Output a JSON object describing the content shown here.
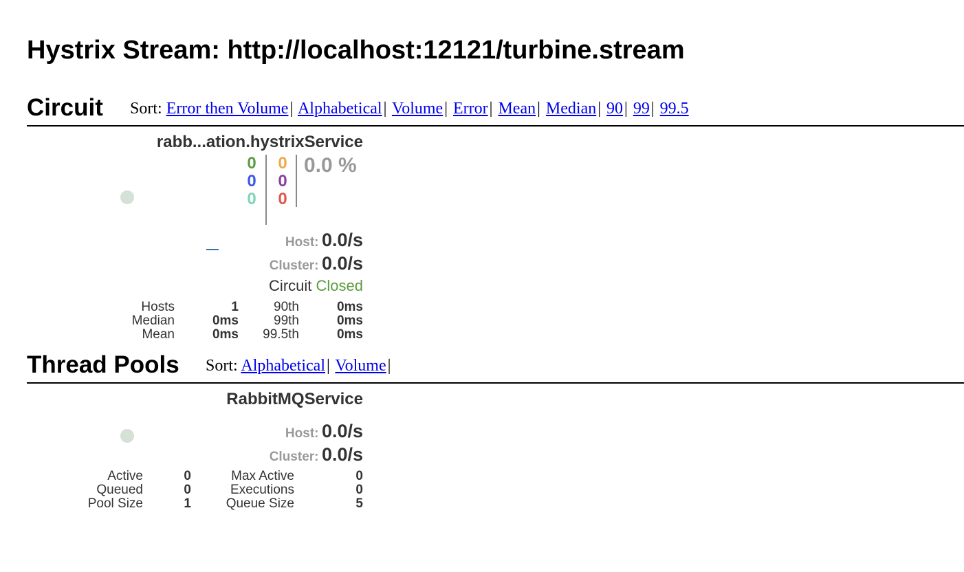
{
  "page": {
    "title": "Hystrix Stream: http://localhost:12121/turbine.stream"
  },
  "circuit": {
    "heading": "Circuit",
    "sort_label": "Sort:",
    "sort_options": [
      "Error then Volume",
      "Alphabetical",
      "Volume",
      "Error",
      "Mean",
      "Median",
      "90",
      "99",
      "99.5"
    ],
    "card": {
      "name": "rabb...ation.hystrixService",
      "counts": {
        "success": "0",
        "short_circuited": "0",
        "bad_request": "0",
        "timeout": "0",
        "rejected": "0",
        "failure": "0"
      },
      "error_percentage": "0.0 %",
      "host_label": "Host:",
      "host_rate": "0.0/s",
      "cluster_label": "Cluster:",
      "cluster_rate": "0.0/s",
      "circuit_label": "Circuit",
      "circuit_state": "Closed",
      "stats": {
        "hosts_label": "Hosts",
        "hosts": "1",
        "median_label": "Median",
        "median": "0ms",
        "mean_label": "Mean",
        "mean": "0ms",
        "p90_label": "90th",
        "p90": "0ms",
        "p99_label": "99th",
        "p99": "0ms",
        "p995_label": "99.5th",
        "p995": "0ms"
      }
    }
  },
  "thread_pools": {
    "heading": "Thread Pools",
    "sort_label": "Sort:",
    "sort_options": [
      "Alphabetical",
      "Volume"
    ],
    "card": {
      "name": "RabbitMQService",
      "host_label": "Host:",
      "host_rate": "0.0/s",
      "cluster_label": "Cluster:",
      "cluster_rate": "0.0/s",
      "stats": {
        "active_label": "Active",
        "active": "0",
        "queued_label": "Queued",
        "queued": "0",
        "pool_size_label": "Pool Size",
        "pool_size": "1",
        "max_active_label": "Max Active",
        "max_active": "0",
        "executions_label": "Executions",
        "executions": "0",
        "queue_size_label": "Queue Size",
        "queue_size": "5"
      }
    }
  },
  "colors": {
    "success": "#5c9b3f",
    "short_circuited": "#3b57e8",
    "bad_request": "#7fd3b8",
    "timeout": "#f0a94a",
    "rejected": "#8b3fa0",
    "failure": "#e2574c",
    "indicator": "#d5e0d7",
    "link": "#0000ee"
  }
}
